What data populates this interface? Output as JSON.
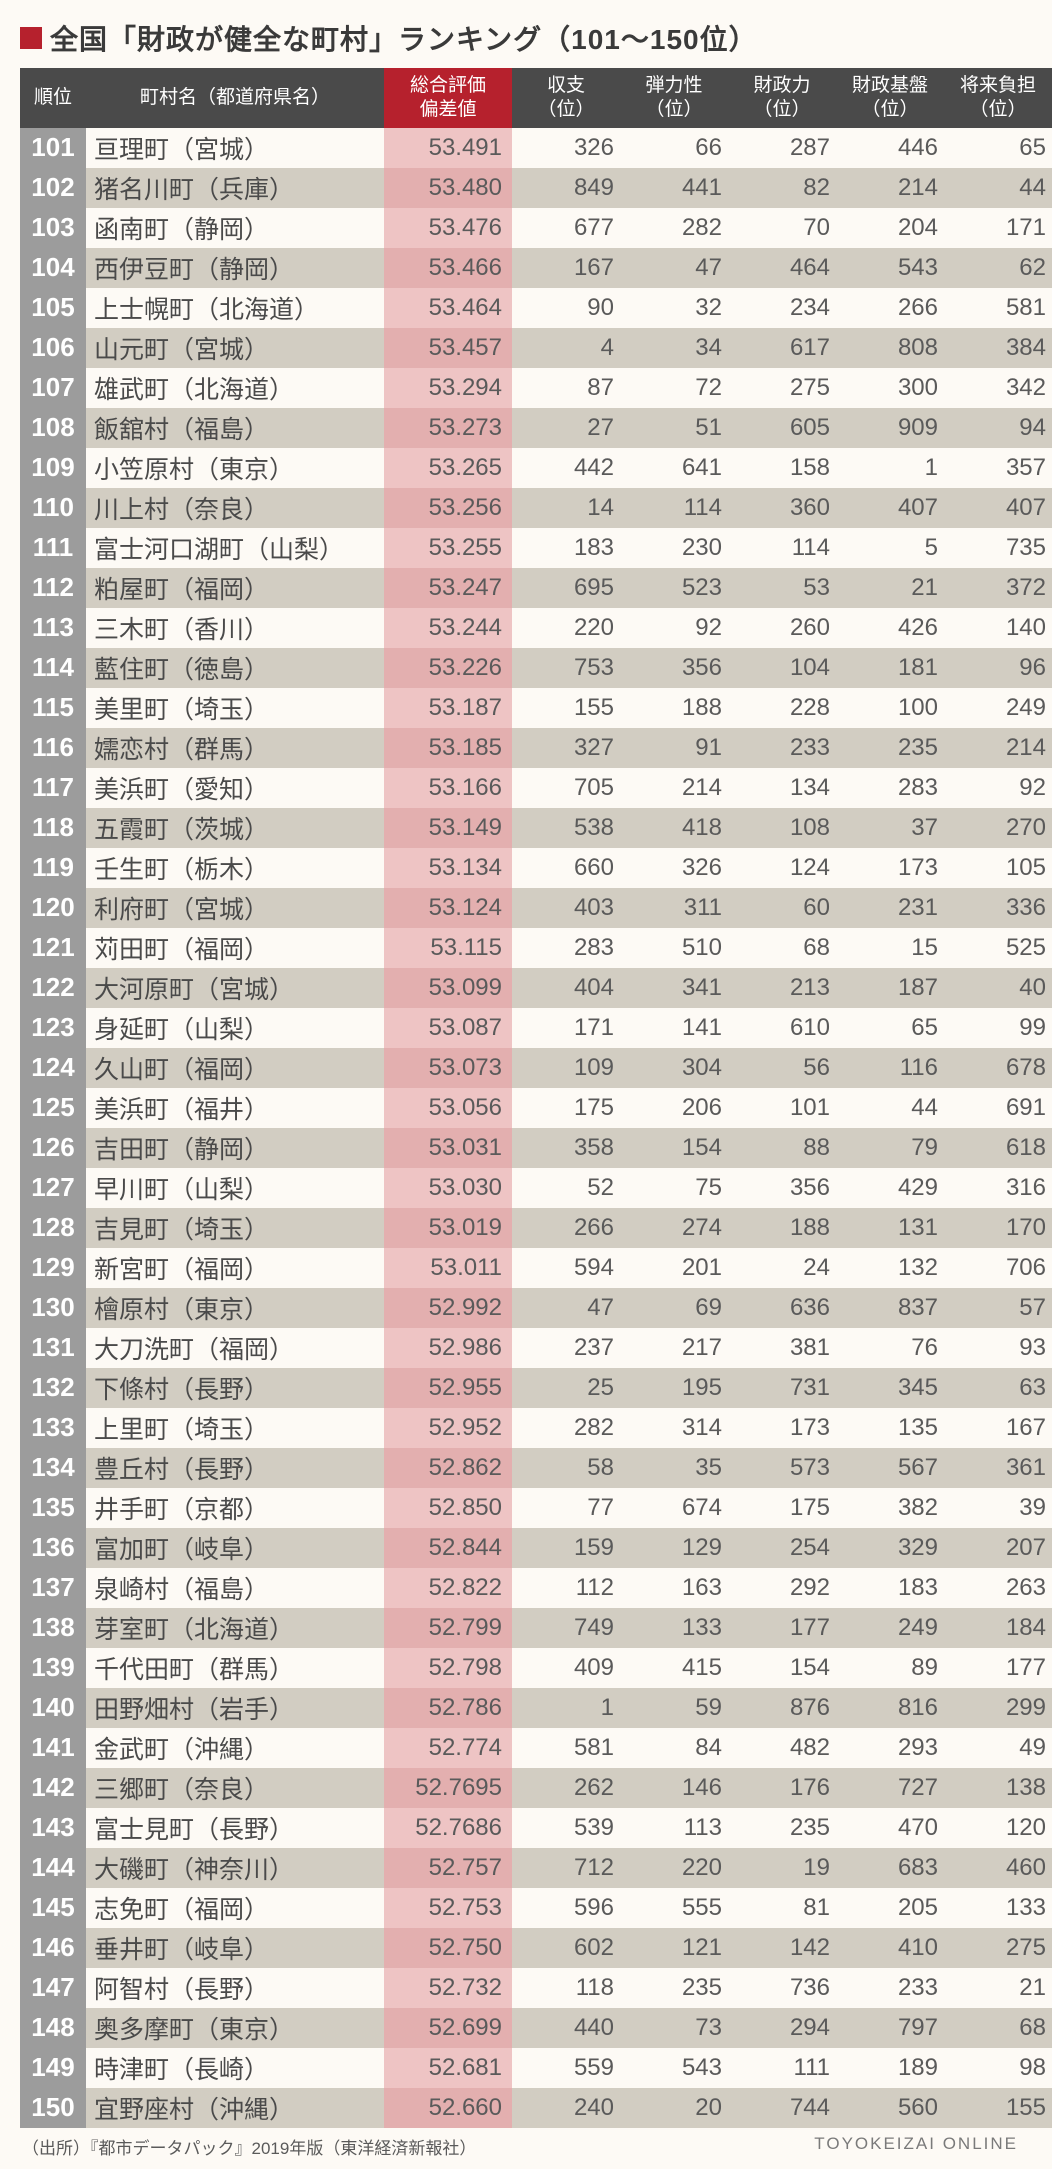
{
  "title": "全国「財政が健全な町村」ランキング（101〜150位）",
  "headers": {
    "rank": "順位",
    "name": "町村名（都道府県名）",
    "score": "総合評価\n偏差値",
    "c1": "収支\n（位）",
    "c2": "弾力性\n（位）",
    "c3": "財政力\n（位）",
    "c4": "財政基盤\n（位）",
    "c5": "将来負担\n（位）"
  },
  "rows": [
    {
      "rank": "101",
      "name": "亘理町（宮城）",
      "score": "53.491",
      "c1": "326",
      "c2": "66",
      "c3": "287",
      "c4": "446",
      "c5": "65"
    },
    {
      "rank": "102",
      "name": "猪名川町（兵庫）",
      "score": "53.480",
      "c1": "849",
      "c2": "441",
      "c3": "82",
      "c4": "214",
      "c5": "44"
    },
    {
      "rank": "103",
      "name": "函南町（静岡）",
      "score": "53.476",
      "c1": "677",
      "c2": "282",
      "c3": "70",
      "c4": "204",
      "c5": "171"
    },
    {
      "rank": "104",
      "name": "西伊豆町（静岡）",
      "score": "53.466",
      "c1": "167",
      "c2": "47",
      "c3": "464",
      "c4": "543",
      "c5": "62"
    },
    {
      "rank": "105",
      "name": "上士幌町（北海道）",
      "score": "53.464",
      "c1": "90",
      "c2": "32",
      "c3": "234",
      "c4": "266",
      "c5": "581"
    },
    {
      "rank": "106",
      "name": "山元町（宮城）",
      "score": "53.457",
      "c1": "4",
      "c2": "34",
      "c3": "617",
      "c4": "808",
      "c5": "384"
    },
    {
      "rank": "107",
      "name": "雄武町（北海道）",
      "score": "53.294",
      "c1": "87",
      "c2": "72",
      "c3": "275",
      "c4": "300",
      "c5": "342"
    },
    {
      "rank": "108",
      "name": "飯舘村（福島）",
      "score": "53.273",
      "c1": "27",
      "c2": "51",
      "c3": "605",
      "c4": "909",
      "c5": "94"
    },
    {
      "rank": "109",
      "name": "小笠原村（東京）",
      "score": "53.265",
      "c1": "442",
      "c2": "641",
      "c3": "158",
      "c4": "1",
      "c5": "357"
    },
    {
      "rank": "110",
      "name": "川上村（奈良）",
      "score": "53.256",
      "c1": "14",
      "c2": "114",
      "c3": "360",
      "c4": "407",
      "c5": "407"
    },
    {
      "rank": "111",
      "name": "富士河口湖町（山梨）",
      "score": "53.255",
      "c1": "183",
      "c2": "230",
      "c3": "114",
      "c4": "5",
      "c5": "735"
    },
    {
      "rank": "112",
      "name": "粕屋町（福岡）",
      "score": "53.247",
      "c1": "695",
      "c2": "523",
      "c3": "53",
      "c4": "21",
      "c5": "372"
    },
    {
      "rank": "113",
      "name": "三木町（香川）",
      "score": "53.244",
      "c1": "220",
      "c2": "92",
      "c3": "260",
      "c4": "426",
      "c5": "140"
    },
    {
      "rank": "114",
      "name": "藍住町（徳島）",
      "score": "53.226",
      "c1": "753",
      "c2": "356",
      "c3": "104",
      "c4": "181",
      "c5": "96"
    },
    {
      "rank": "115",
      "name": "美里町（埼玉）",
      "score": "53.187",
      "c1": "155",
      "c2": "188",
      "c3": "228",
      "c4": "100",
      "c5": "249"
    },
    {
      "rank": "116",
      "name": "嬬恋村（群馬）",
      "score": "53.185",
      "c1": "327",
      "c2": "91",
      "c3": "233",
      "c4": "235",
      "c5": "214"
    },
    {
      "rank": "117",
      "name": "美浜町（愛知）",
      "score": "53.166",
      "c1": "705",
      "c2": "214",
      "c3": "134",
      "c4": "283",
      "c5": "92"
    },
    {
      "rank": "118",
      "name": "五霞町（茨城）",
      "score": "53.149",
      "c1": "538",
      "c2": "418",
      "c3": "108",
      "c4": "37",
      "c5": "270"
    },
    {
      "rank": "119",
      "name": "壬生町（栃木）",
      "score": "53.134",
      "c1": "660",
      "c2": "326",
      "c3": "124",
      "c4": "173",
      "c5": "105"
    },
    {
      "rank": "120",
      "name": "利府町（宮城）",
      "score": "53.124",
      "c1": "403",
      "c2": "311",
      "c3": "60",
      "c4": "231",
      "c5": "336"
    },
    {
      "rank": "121",
      "name": "苅田町（福岡）",
      "score": "53.115",
      "c1": "283",
      "c2": "510",
      "c3": "68",
      "c4": "15",
      "c5": "525"
    },
    {
      "rank": "122",
      "name": "大河原町（宮城）",
      "score": "53.099",
      "c1": "404",
      "c2": "341",
      "c3": "213",
      "c4": "187",
      "c5": "40"
    },
    {
      "rank": "123",
      "name": "身延町（山梨）",
      "score": "53.087",
      "c1": "171",
      "c2": "141",
      "c3": "610",
      "c4": "65",
      "c5": "99"
    },
    {
      "rank": "124",
      "name": "久山町（福岡）",
      "score": "53.073",
      "c1": "109",
      "c2": "304",
      "c3": "56",
      "c4": "116",
      "c5": "678"
    },
    {
      "rank": "125",
      "name": "美浜町（福井）",
      "score": "53.056",
      "c1": "175",
      "c2": "206",
      "c3": "101",
      "c4": "44",
      "c5": "691"
    },
    {
      "rank": "126",
      "name": "吉田町（静岡）",
      "score": "53.031",
      "c1": "358",
      "c2": "154",
      "c3": "88",
      "c4": "79",
      "c5": "618"
    },
    {
      "rank": "127",
      "name": "早川町（山梨）",
      "score": "53.030",
      "c1": "52",
      "c2": "75",
      "c3": "356",
      "c4": "429",
      "c5": "316"
    },
    {
      "rank": "128",
      "name": "吉見町（埼玉）",
      "score": "53.019",
      "c1": "266",
      "c2": "274",
      "c3": "188",
      "c4": "131",
      "c5": "170"
    },
    {
      "rank": "129",
      "name": "新宮町（福岡）",
      "score": "53.011",
      "c1": "594",
      "c2": "201",
      "c3": "24",
      "c4": "132",
      "c5": "706"
    },
    {
      "rank": "130",
      "name": "檜原村（東京）",
      "score": "52.992",
      "c1": "47",
      "c2": "69",
      "c3": "636",
      "c4": "837",
      "c5": "57"
    },
    {
      "rank": "131",
      "name": "大刀洗町（福岡）",
      "score": "52.986",
      "c1": "237",
      "c2": "217",
      "c3": "381",
      "c4": "76",
      "c5": "93"
    },
    {
      "rank": "132",
      "name": "下條村（長野）",
      "score": "52.955",
      "c1": "25",
      "c2": "195",
      "c3": "731",
      "c4": "345",
      "c5": "63"
    },
    {
      "rank": "133",
      "name": "上里町（埼玉）",
      "score": "52.952",
      "c1": "282",
      "c2": "314",
      "c3": "173",
      "c4": "135",
      "c5": "167"
    },
    {
      "rank": "134",
      "name": "豊丘村（長野）",
      "score": "52.862",
      "c1": "58",
      "c2": "35",
      "c3": "573",
      "c4": "567",
      "c5": "361"
    },
    {
      "rank": "135",
      "name": "井手町（京都）",
      "score": "52.850",
      "c1": "77",
      "c2": "674",
      "c3": "175",
      "c4": "382",
      "c5": "39"
    },
    {
      "rank": "136",
      "name": "富加町（岐阜）",
      "score": "52.844",
      "c1": "159",
      "c2": "129",
      "c3": "254",
      "c4": "329",
      "c5": "207"
    },
    {
      "rank": "137",
      "name": "泉崎村（福島）",
      "score": "52.822",
      "c1": "112",
      "c2": "163",
      "c3": "292",
      "c4": "183",
      "c5": "263"
    },
    {
      "rank": "138",
      "name": "芽室町（北海道）",
      "score": "52.799",
      "c1": "749",
      "c2": "133",
      "c3": "177",
      "c4": "249",
      "c5": "184"
    },
    {
      "rank": "139",
      "name": "千代田町（群馬）",
      "score": "52.798",
      "c1": "409",
      "c2": "415",
      "c3": "154",
      "c4": "89",
      "c5": "177"
    },
    {
      "rank": "140",
      "name": "田野畑村（岩手）",
      "score": "52.786",
      "c1": "1",
      "c2": "59",
      "c3": "876",
      "c4": "816",
      "c5": "299"
    },
    {
      "rank": "141",
      "name": "金武町（沖縄）",
      "score": "52.774",
      "c1": "581",
      "c2": "84",
      "c3": "482",
      "c4": "293",
      "c5": "49"
    },
    {
      "rank": "142",
      "name": "三郷町（奈良）",
      "score": "52.7695",
      "c1": "262",
      "c2": "146",
      "c3": "176",
      "c4": "727",
      "c5": "138"
    },
    {
      "rank": "143",
      "name": "富士見町（長野）",
      "score": "52.7686",
      "c1": "539",
      "c2": "113",
      "c3": "235",
      "c4": "470",
      "c5": "120"
    },
    {
      "rank": "144",
      "name": "大磯町（神奈川）",
      "score": "52.757",
      "c1": "712",
      "c2": "220",
      "c3": "19",
      "c4": "683",
      "c5": "460"
    },
    {
      "rank": "145",
      "name": "志免町（福岡）",
      "score": "52.753",
      "c1": "596",
      "c2": "555",
      "c3": "81",
      "c4": "205",
      "c5": "133"
    },
    {
      "rank": "146",
      "name": "垂井町（岐阜）",
      "score": "52.750",
      "c1": "602",
      "c2": "121",
      "c3": "142",
      "c4": "410",
      "c5": "275"
    },
    {
      "rank": "147",
      "name": "阿智村（長野）",
      "score": "52.732",
      "c1": "118",
      "c2": "235",
      "c3": "736",
      "c4": "233",
      "c5": "21"
    },
    {
      "rank": "148",
      "name": "奥多摩町（東京）",
      "score": "52.699",
      "c1": "440",
      "c2": "73",
      "c3": "294",
      "c4": "797",
      "c5": "68"
    },
    {
      "rank": "149",
      "name": "時津町（長崎）",
      "score": "52.681",
      "c1": "559",
      "c2": "543",
      "c3": "111",
      "c4": "189",
      "c5": "98"
    },
    {
      "rank": "150",
      "name": "宜野座村（沖縄）",
      "score": "52.660",
      "c1": "240",
      "c2": "20",
      "c3": "744",
      "c4": "560",
      "c5": "155"
    }
  ],
  "footer_left": "（出所）『都市データパック』2019年版（東洋経済新報社）",
  "footer_right": "TOYOKEIZAI ONLINE",
  "style": {
    "title_marker_color": "#b6212d",
    "header_bg": "#4a4a4a",
    "score_header_bg": "#b6212d",
    "rank_bg": "#9c9c9c",
    "row_even_bg": "#d2cdc2",
    "score_bg_odd": "#eec4c4",
    "score_bg_even": "#e3afaf",
    "page_bg": "#fdfaf5",
    "title_fontsize": 28,
    "header_fontsize": 19,
    "cell_fontsize": 24,
    "rank_fontsize": 26
  }
}
